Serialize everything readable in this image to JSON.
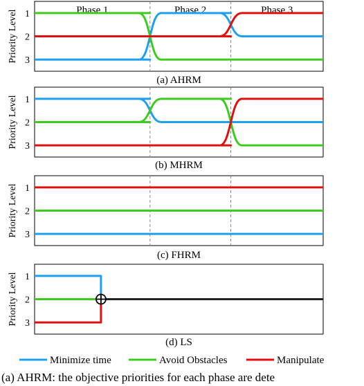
{
  "colors": {
    "minimize": "#1ea0f0",
    "avoid": "#3dcc1e",
    "manipulate": "#e01010",
    "merged": "#222222"
  },
  "legend": [
    "Minimize time",
    "Avoid Obstacles",
    "Manipulate"
  ],
  "ylabel": "Priority Level",
  "caption": "(a) AHRM: the objective priorities for each phase are dete",
  "chart_data": [
    {
      "type": "line",
      "subtitle": "(a) AHRM",
      "phases": [
        "Phase 1",
        "Phase 2",
        "Phase 3"
      ],
      "phase_boundaries": [
        0.4,
        0.68
      ],
      "y_ticks": [
        "1",
        "2",
        "3"
      ],
      "xlim": [
        0,
        1
      ],
      "ylim": [
        0.5,
        3.5
      ],
      "series": [
        {
          "name": "Minimize time",
          "points": [
            [
              0,
              3
            ],
            [
              0.4,
              3
            ],
            [
              0.4,
              1
            ],
            [
              0.68,
              1
            ],
            [
              0.68,
              2
            ],
            [
              1,
              2
            ]
          ]
        },
        {
          "name": "Avoid Obstacles",
          "points": [
            [
              0,
              1
            ],
            [
              0.4,
              1
            ],
            [
              0.4,
              3
            ],
            [
              1,
              3
            ]
          ]
        },
        {
          "name": "Manipulate",
          "points": [
            [
              0,
              2
            ],
            [
              0.68,
              2
            ],
            [
              0.68,
              1
            ],
            [
              1,
              1
            ]
          ]
        }
      ]
    },
    {
      "type": "line",
      "subtitle": "(b) MHRM",
      "phases": [],
      "phase_boundaries": [
        0.4,
        0.68
      ],
      "y_ticks": [
        "1",
        "2",
        "3"
      ],
      "xlim": [
        0,
        1
      ],
      "ylim": [
        0.5,
        3.5
      ],
      "series": [
        {
          "name": "Minimize time",
          "points": [
            [
              0,
              1
            ],
            [
              0.4,
              1
            ],
            [
              0.4,
              2
            ],
            [
              1,
              2
            ]
          ]
        },
        {
          "name": "Avoid Obstacles",
          "points": [
            [
              0,
              2
            ],
            [
              0.4,
              2
            ],
            [
              0.4,
              1
            ],
            [
              0.68,
              1
            ],
            [
              0.68,
              3
            ],
            [
              1,
              3
            ]
          ]
        },
        {
          "name": "Manipulate",
          "points": [
            [
              0,
              3
            ],
            [
              0.68,
              3
            ],
            [
              0.68,
              1
            ],
            [
              1,
              1
            ]
          ]
        }
      ]
    },
    {
      "type": "line",
      "subtitle": "(c) FHRM",
      "phases": [],
      "phase_boundaries": [
        0.4,
        0.68
      ],
      "y_ticks": [
        "1",
        "2",
        "3"
      ],
      "xlim": [
        0,
        1
      ],
      "ylim": [
        0.5,
        3.5
      ],
      "series": [
        {
          "name": "Minimize time",
          "points": [
            [
              0,
              3
            ],
            [
              1,
              3
            ]
          ]
        },
        {
          "name": "Avoid Obstacles",
          "points": [
            [
              0,
              2
            ],
            [
              1,
              2
            ]
          ]
        },
        {
          "name": "Manipulate",
          "points": [
            [
              0,
              1
            ],
            [
              1,
              1
            ]
          ]
        }
      ]
    },
    {
      "type": "line",
      "subtitle": "(d) LS",
      "phases": [],
      "phase_boundaries": [],
      "y_ticks": [
        "1",
        "2",
        "3"
      ],
      "xlim": [
        0,
        1
      ],
      "ylim": [
        0.5,
        3.5
      ],
      "merge_point": [
        0.23,
        2
      ],
      "series": [
        {
          "name": "Minimize time",
          "points": [
            [
              0,
              1
            ],
            [
              0.23,
              1
            ],
            [
              0.23,
              2
            ]
          ]
        },
        {
          "name": "Avoid Obstacles",
          "points": [
            [
              0,
              2
            ],
            [
              0.23,
              2
            ]
          ]
        },
        {
          "name": "Manipulate",
          "points": [
            [
              0,
              3
            ],
            [
              0.23,
              3
            ],
            [
              0.23,
              2
            ]
          ]
        },
        {
          "name": "Combined",
          "points": [
            [
              0.23,
              2
            ],
            [
              1,
              2
            ]
          ]
        }
      ]
    }
  ]
}
